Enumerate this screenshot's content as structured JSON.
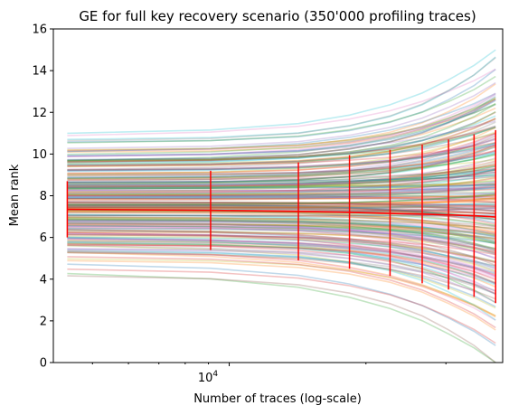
{
  "chart_data": {
    "type": "line",
    "title": "GE for full key recovery scenario (350'000 profiling traces)",
    "xlabel": "Number of traces (log-scale)",
    "ylabel": "Mean rank",
    "x_scale": "log",
    "xlim": [
      4100,
      40000
    ],
    "ylim": [
      0,
      16
    ],
    "y_ticks": [
      "0",
      "2",
      "4",
      "6",
      "8",
      "10",
      "12",
      "14",
      "16"
    ],
    "x_major_tick": {
      "value": 10000,
      "label": "10^4"
    },
    "x_minor_ticks": [
      5000,
      6000,
      7000,
      8000,
      9000,
      20000,
      30000
    ],
    "grid": false,
    "legend": "none",
    "mean_curve": {
      "color": "#ff0000",
      "x": [
        4400,
        9100,
        14200,
        18400,
        22600,
        26600,
        30400,
        34600,
        38600
      ],
      "y": [
        7.35,
        7.3,
        7.25,
        7.2,
        7.15,
        7.12,
        7.08,
        7.04,
        6.98
      ],
      "error_low": [
        6.0,
        5.4,
        4.9,
        4.5,
        4.15,
        3.8,
        3.5,
        3.15,
        2.85
      ],
      "error_high": [
        8.7,
        9.2,
        9.6,
        9.95,
        10.2,
        10.45,
        10.7,
        10.95,
        11.15
      ]
    },
    "trace_family": {
      "count": 256,
      "x": [
        4400,
        9100,
        14200,
        18400,
        22600,
        26600,
        30400,
        34600,
        38600
      ],
      "start_range": [
        3.6,
        11.5
      ],
      "end_range": [
        0.0,
        15.0
      ],
      "opacity": 0.28,
      "colors": [
        "#1f77b4",
        "#ff7f0e",
        "#2ca02c",
        "#d62728",
        "#9467bd",
        "#8c564b",
        "#e377c2",
        "#7f7f7f",
        "#bcbd22",
        "#17becf"
      ]
    }
  },
  "axis_labels": {
    "x_tick_base": "10",
    "x_tick_exp": "4"
  }
}
